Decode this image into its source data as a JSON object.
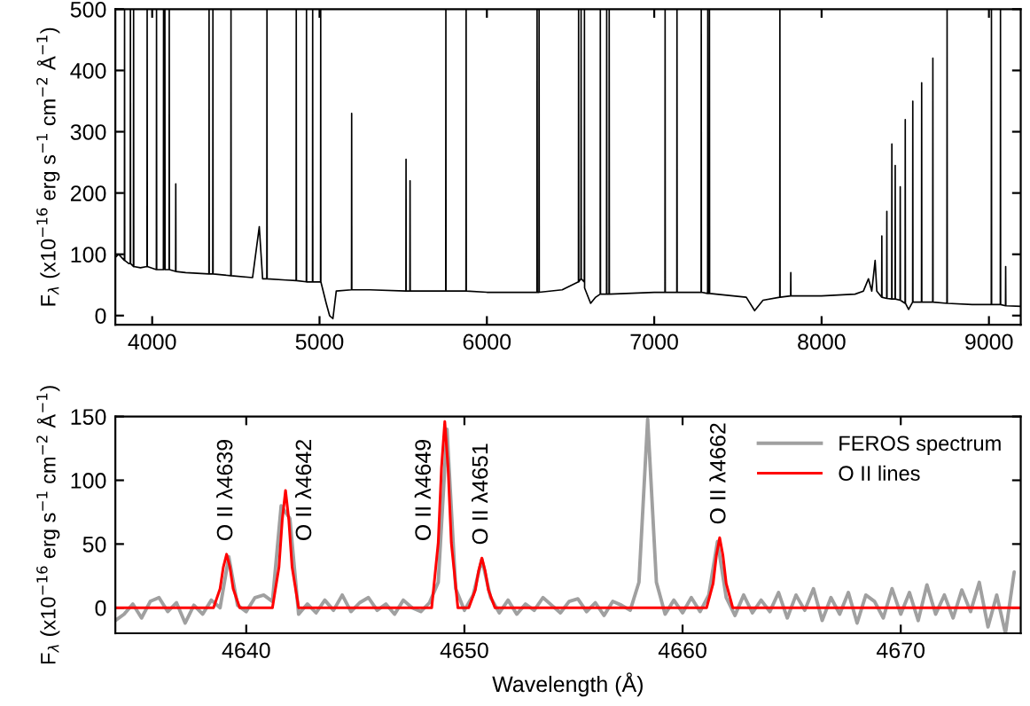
{
  "chart_data": [
    {
      "type": "line",
      "ylabel": "F$_{λ}$ (x10$^{−16}$ erg s$^{−1}$ cm$^{−2}$ Å$^{−1}$)",
      "xlim": [
        3780,
        9190
      ],
      "xticks": [
        4000,
        5000,
        6000,
        7000,
        8000,
        9000
      ],
      "ylim": [
        -15,
        500
      ],
      "yticks": [
        0,
        100,
        200,
        300,
        400,
        500
      ],
      "grid": false,
      "legend": false,
      "series": [
        {
          "color": "#000000",
          "x": [
            3780,
            3800,
            3834,
            3835,
            3836,
            3860,
            3869,
            3870,
            3871,
            3888,
            3889,
            3890,
            3930,
            3969,
            3970,
            3971,
            4025,
            4026,
            4027,
            4067,
            4068,
            4069,
            4076,
            4077,
            4101,
            4102,
            4103,
            4140,
            4141,
            4142,
            4200,
            4339,
            4340,
            4341,
            4362,
            4363,
            4364,
            4470,
            4471,
            4472,
            4600,
            4640,
            4660,
            4685,
            4686,
            4687,
            4800,
            4860,
            4861,
            4862,
            4921,
            4922,
            4923,
            4958,
            4959,
            4960,
            5006,
            5007,
            5008,
            5040,
            5060,
            5080,
            5100,
            5191,
            5192,
            5193,
            5300,
            5516,
            5517,
            5518,
            5540,
            5541,
            5542,
            5754,
            5755,
            5756,
            5875,
            5876,
            5877,
            6000,
            6299,
            6300,
            6301,
            6311,
            6312,
            6313,
            6450,
            6547,
            6548,
            6549,
            6562,
            6563,
            6564,
            6582,
            6583,
            6584,
            6620,
            6650,
            6677,
            6678,
            6679,
            6715,
            6716,
            6717,
            6730,
            6731,
            6732,
            7000,
            7064,
            7065,
            7066,
            7135,
            7136,
            7137,
            7280,
            7281,
            7282,
            7319,
            7320,
            7321,
            7329,
            7330,
            7331,
            7550,
            7600,
            7650,
            7750,
            7751,
            7752,
            7815,
            7816,
            7817,
            8000,
            8200,
            8250,
            8280,
            8300,
            8320,
            8330,
            8359,
            8360,
            8361,
            8389,
            8390,
            8391,
            8419,
            8420,
            8421,
            8439,
            8440,
            8441,
            8469,
            8470,
            8471,
            8499,
            8500,
            8501,
            8520,
            8544,
            8545,
            8546,
            8597,
            8598,
            8599,
            8664,
            8665,
            8666,
            8749,
            8750,
            8751,
            8900,
            9014,
            9015,
            9016,
            9068,
            9069,
            9070,
            9099,
            9100,
            9101,
            9190
          ],
          "values": [
            95,
            100,
            90,
            500,
            90,
            85,
            85,
            500,
            85,
            80,
            500,
            80,
            78,
            80,
            500,
            80,
            75,
            500,
            75,
            75,
            500,
            75,
            500,
            75,
            75,
            500,
            75,
            72,
            215,
            72,
            70,
            68,
            500,
            68,
            68,
            500,
            68,
            65,
            500,
            65,
            62,
            145,
            60,
            60,
            500,
            60,
            58,
            57,
            500,
            57,
            55,
            500,
            55,
            55,
            500,
            55,
            55,
            500,
            55,
            20,
            0,
            -5,
            40,
            42,
            330,
            42,
            42,
            40,
            255,
            40,
            40,
            220,
            40,
            40,
            500,
            40,
            40,
            500,
            40,
            38,
            38,
            500,
            38,
            38,
            500,
            38,
            42,
            55,
            500,
            55,
            60,
            500,
            60,
            55,
            500,
            45,
            20,
            30,
            35,
            500,
            35,
            35,
            500,
            35,
            35,
            500,
            35,
            38,
            38,
            500,
            38,
            38,
            500,
            38,
            38,
            500,
            38,
            36,
            500,
            36,
            36,
            500,
            36,
            30,
            8,
            25,
            30,
            500,
            30,
            32,
            70,
            32,
            32,
            35,
            40,
            60,
            40,
            90,
            40,
            30,
            130,
            30,
            28,
            170,
            28,
            27,
            280,
            27,
            27,
            245,
            27,
            25,
            210,
            25,
            20,
            320,
            20,
            10,
            22,
            350,
            22,
            22,
            380,
            22,
            22,
            420,
            22,
            20,
            500,
            20,
            18,
            18,
            500,
            18,
            18,
            500,
            18,
            16,
            80,
            16,
            15
          ]
        }
      ]
    },
    {
      "type": "line",
      "xlabel": "Wavelength (Å)",
      "ylabel": "F$_{λ}$ (x10$^{−16}$ erg s$^{−1}$ cm$^{−2}$ Å$^{−1}$)",
      "xlim": [
        4634,
        4675.5
      ],
      "xticks": [
        4640,
        4650,
        4660,
        4670
      ],
      "ylim": [
        -20,
        150
      ],
      "yticks": [
        0,
        50,
        100,
        150
      ],
      "grid": false,
      "legend": "top right",
      "annotations": [
        "O II λ4639",
        "O II λ4642",
        "O II λ4649",
        "O II λ4651",
        "O II λ4662"
      ],
      "series": [
        {
          "name": "FEROS spectrum",
          "color": "#a0a0a0",
          "x": [
            4634.0,
            4634.4,
            4634.8,
            4635.2,
            4635.6,
            4636.0,
            4636.4,
            4636.8,
            4637.2,
            4637.6,
            4638.0,
            4638.4,
            4638.8,
            4639.2,
            4639.6,
            4640.0,
            4640.4,
            4640.8,
            4641.2,
            4641.6,
            4642.0,
            4642.4,
            4642.8,
            4643.2,
            4643.6,
            4644.0,
            4644.4,
            4644.8,
            4645.2,
            4645.6,
            4646.0,
            4646.4,
            4646.8,
            4647.2,
            4647.6,
            4648.0,
            4648.4,
            4648.8,
            4649.2,
            4649.6,
            4650.0,
            4650.4,
            4650.8,
            4651.2,
            4651.6,
            4652.0,
            4652.4,
            4652.8,
            4653.2,
            4653.6,
            4654.0,
            4654.4,
            4654.8,
            4655.2,
            4655.6,
            4656.0,
            4656.4,
            4656.8,
            4657.2,
            4657.6,
            4658.0,
            4658.4,
            4658.8,
            4659.2,
            4659.6,
            4660.0,
            4660.4,
            4660.8,
            4661.2,
            4661.6,
            4662.0,
            4662.4,
            4662.8,
            4663.2,
            4663.6,
            4664.0,
            4664.4,
            4664.8,
            4665.2,
            4665.6,
            4666.0,
            4666.4,
            4666.8,
            4667.2,
            4667.6,
            4668.0,
            4668.4,
            4668.8,
            4669.2,
            4669.6,
            4670.0,
            4670.4,
            4670.8,
            4671.2,
            4671.6,
            4672.0,
            4672.4,
            4672.8,
            4673.2,
            4673.6,
            4674.0,
            4674.4,
            4674.8,
            4675.2
          ],
          "values": [
            -10,
            -5,
            3,
            -8,
            5,
            8,
            -3,
            4,
            -12,
            2,
            -5,
            6,
            0,
            40,
            2,
            -3,
            8,
            10,
            5,
            80,
            70,
            -5,
            3,
            -4,
            6,
            -2,
            10,
            -3,
            4,
            8,
            -2,
            3,
            -5,
            6,
            0,
            -3,
            4,
            20,
            140,
            15,
            -2,
            10,
            38,
            8,
            -4,
            6,
            -5,
            3,
            -2,
            8,
            2,
            -4,
            5,
            7,
            -3,
            4,
            -6,
            5,
            2,
            -2,
            20,
            148,
            20,
            -5,
            6,
            -4,
            8,
            -3,
            10,
            52,
            8,
            -6,
            10,
            -4,
            6,
            -3,
            12,
            -8,
            10,
            -2,
            15,
            -10,
            8,
            -5,
            12,
            -12,
            10,
            5,
            -8,
            15,
            -5,
            12,
            -10,
            18,
            -5,
            10,
            -8,
            14,
            -3,
            20,
            -15,
            10,
            -20,
            28
          ]
        },
        {
          "name": "O II lines",
          "color": "#ff0000",
          "x": [
            4634.0,
            4638.5,
            4638.8,
            4638.95,
            4639.1,
            4639.25,
            4639.4,
            4639.7,
            4641.2,
            4641.5,
            4641.65,
            4641.8,
            4641.95,
            4642.1,
            4642.4,
            4648.5,
            4648.8,
            4648.95,
            4649.1,
            4649.25,
            4649.4,
            4649.7,
            4650.2,
            4650.5,
            4650.65,
            4650.8,
            4650.95,
            4651.1,
            4651.4,
            4661.1,
            4661.4,
            4661.55,
            4661.7,
            4661.85,
            4662.0,
            4662.3,
            4675.5
          ],
          "values": [
            0,
            0,
            15,
            32,
            42,
            32,
            15,
            0,
            0,
            32,
            69,
            92,
            69,
            32,
            0,
            0,
            51,
            110,
            146,
            110,
            51,
            0,
            0,
            14,
            29,
            39,
            29,
            14,
            0,
            0,
            19,
            41,
            55,
            41,
            19,
            0,
            0
          ]
        }
      ]
    }
  ]
}
